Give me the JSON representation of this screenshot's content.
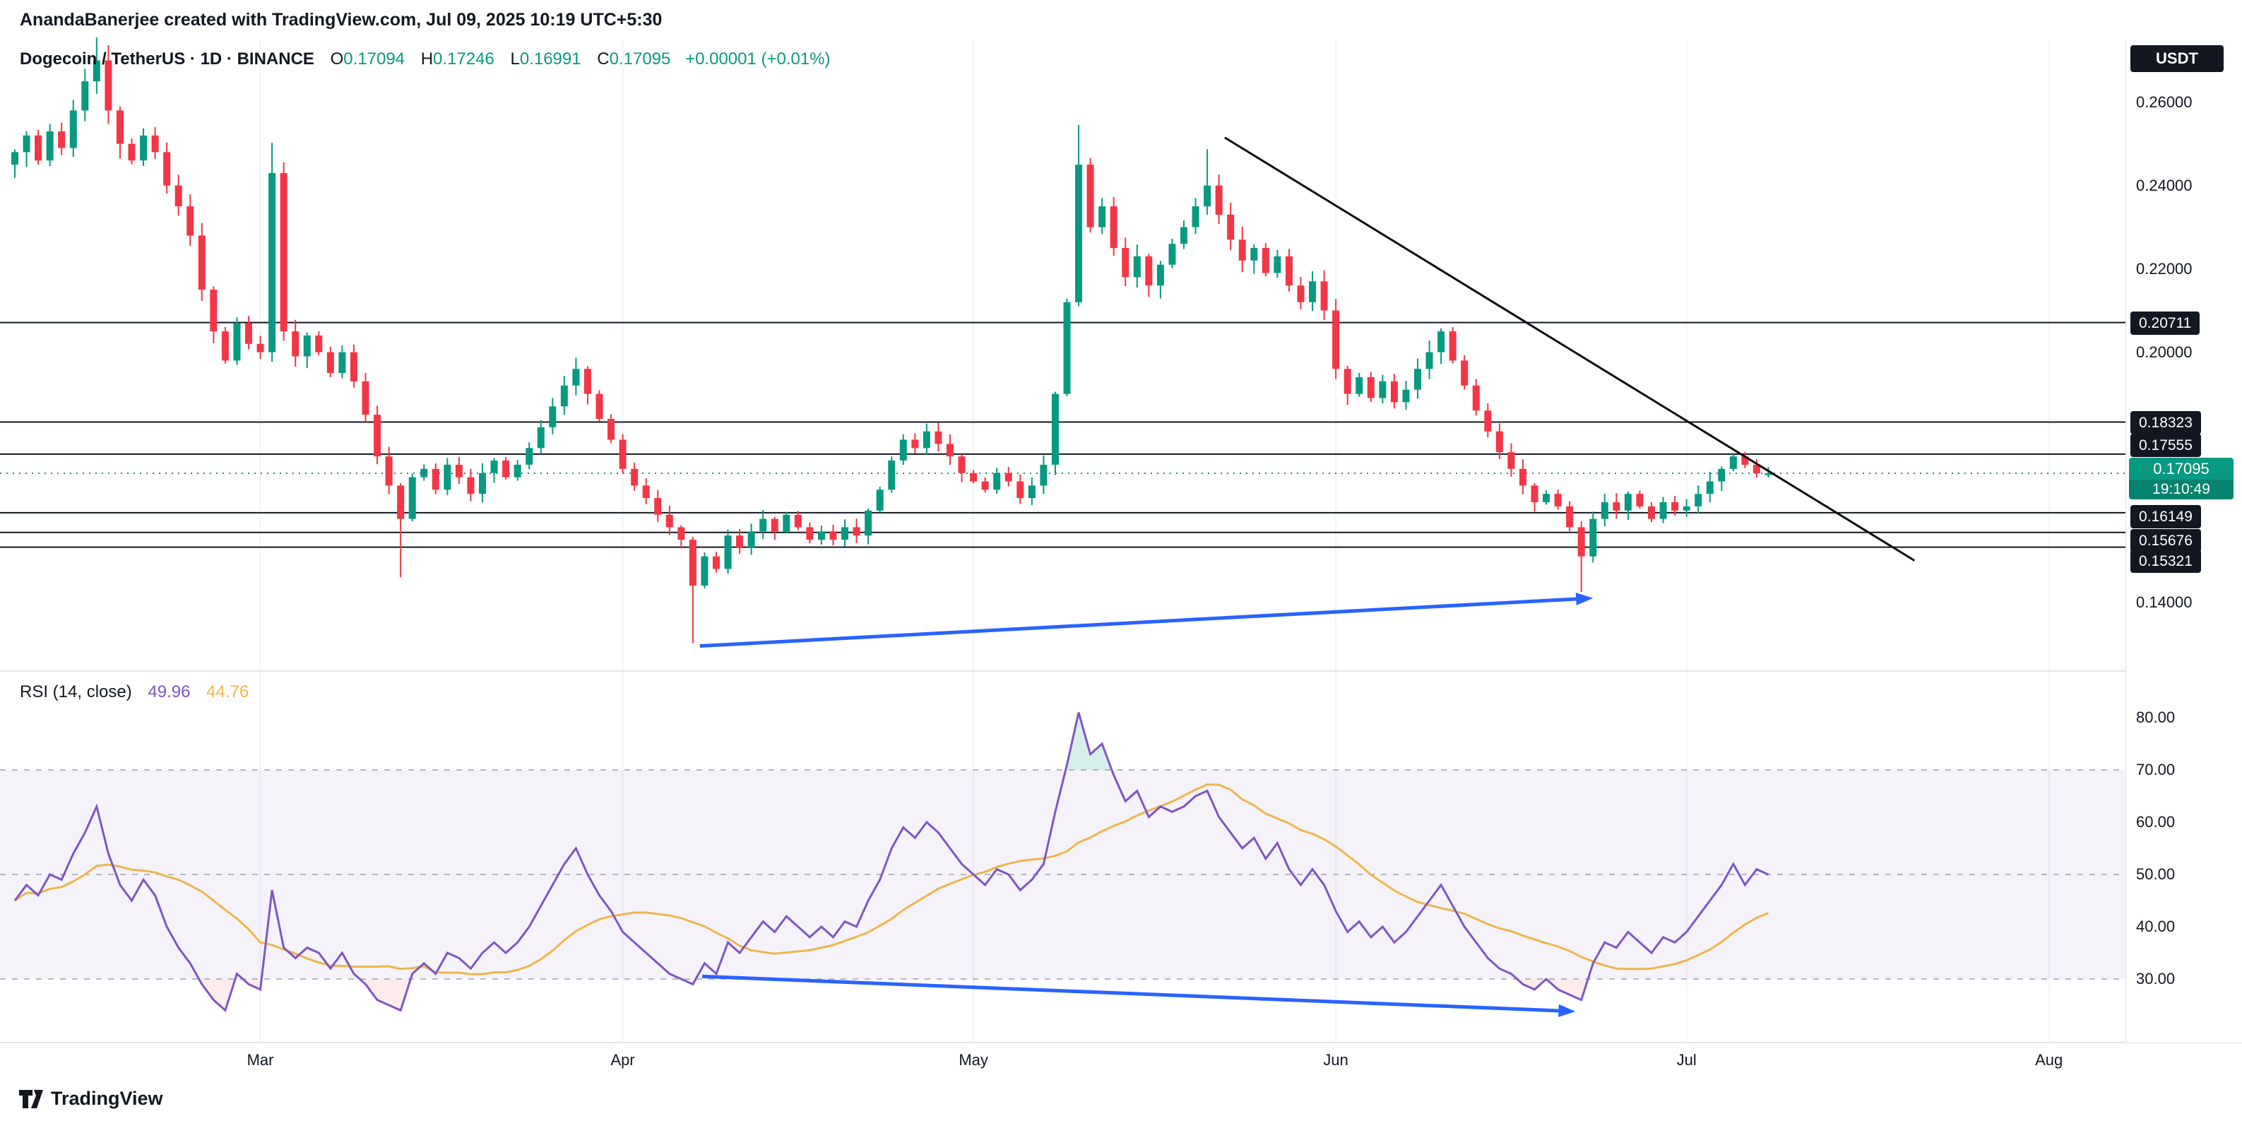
{
  "header": {
    "attribution": "AnandaBanerjee created with TradingView.com, Jul 09, 2025 10:19 UTC+5:30"
  },
  "legend": {
    "title": "Dogecoin / TetherUS · 1D · BINANCE",
    "open_label": "O",
    "open_value": "0.17094",
    "high_label": "H",
    "high_value": "0.17246",
    "low_label": "L",
    "low_value": "0.16991",
    "close_label": "C",
    "close_value": "0.17095",
    "change": "+0.00001 (+0.01%)"
  },
  "rsi_legend": {
    "label": "RSI (14, close)",
    "value": "49.96",
    "ma_value": "44.76"
  },
  "price_axis": {
    "currency": "USDT",
    "plain": [
      {
        "p": 0.26,
        "t": "0.26000"
      },
      {
        "p": 0.24,
        "t": "0.24000"
      },
      {
        "p": 0.22,
        "t": "0.22000"
      },
      {
        "p": 0.2,
        "t": "0.20000"
      },
      {
        "p": 0.14,
        "t": "0.14000"
      }
    ],
    "badges": [
      {
        "p": 0.20711,
        "t": "0.20711"
      },
      {
        "p": 0.18323,
        "t": "0.18323"
      },
      {
        "p": 0.17555,
        "t": "0.17555"
      },
      {
        "p": 0.16149,
        "t": "0.16149"
      },
      {
        "p": 0.15676,
        "t": "0.15676"
      },
      {
        "p": 0.15321,
        "t": "0.15321"
      }
    ],
    "current": {
      "p": 0.17095,
      "t": "0.17095",
      "countdown": "19:10:49"
    }
  },
  "rsi_axis": [
    {
      "v": 80,
      "t": "80.00"
    },
    {
      "v": 70,
      "t": "70.00"
    },
    {
      "v": 60,
      "t": "60.00"
    },
    {
      "v": 50,
      "t": "50.00"
    },
    {
      "v": 40,
      "t": "40.00"
    },
    {
      "v": 30,
      "t": "30.00"
    }
  ],
  "time_axis": {
    "ticks": [
      {
        "label": "Mar",
        "index": 21
      },
      {
        "label": "Apr",
        "index": 52
      },
      {
        "label": "May",
        "index": 82
      },
      {
        "label": "Jun",
        "index": 113
      },
      {
        "label": "Jul",
        "index": 143
      },
      {
        "label": "Aug",
        "index": 174
      }
    ]
  },
  "footer": {
    "brand": "TradingView"
  },
  "colors": {
    "up": "#089981",
    "down": "#F23645",
    "blue": "#2962FF",
    "rsi": "#7E57C2",
    "rsi_ma": "#EFB54B",
    "band_fill": "rgba(126,87,194,0.08)",
    "band_line": "rgba(127,127,143,0.55)",
    "level": "#131722",
    "grid": "#F0F3FA",
    "sep": "#E0E3EB",
    "trend": "#0C0C0C",
    "ob_fill": "rgba(8,153,129,0.16)",
    "os_fill": "rgba(242,54,69,0.10)"
  },
  "chart_data": {
    "type": "candlestick",
    "title": "Dogecoin / TetherUS, 1D, BINANCE, with RSI(14) subpanel",
    "x_unit": "day",
    "months_visible": [
      "Mar",
      "Apr",
      "May",
      "Jun",
      "Jul",
      "Aug"
    ],
    "price_range_visible": [
      0.123,
      0.275
    ],
    "rsi_range_visible": [
      18,
      88
    ],
    "current_price": 0.17095,
    "first_open": 0.245,
    "closes": [
      0.248,
      0.252,
      0.246,
      0.253,
      0.249,
      0.258,
      0.265,
      0.27,
      0.258,
      0.25,
      0.246,
      0.252,
      0.248,
      0.24,
      0.235,
      0.228,
      0.215,
      0.205,
      0.198,
      0.207,
      0.202,
      0.2,
      0.243,
      0.205,
      0.199,
      0.204,
      0.2,
      0.195,
      0.2,
      0.193,
      0.185,
      0.175,
      0.168,
      0.16,
      0.17,
      0.172,
      0.167,
      0.173,
      0.17,
      0.166,
      0.171,
      0.174,
      0.17,
      0.173,
      0.177,
      0.182,
      0.187,
      0.192,
      0.196,
      0.19,
      0.184,
      0.179,
      0.172,
      0.168,
      0.165,
      0.161,
      0.158,
      0.155,
      0.144,
      0.151,
      0.148,
      0.156,
      0.153,
      0.157,
      0.16,
      0.157,
      0.161,
      0.158,
      0.155,
      0.157,
      0.155,
      0.158,
      0.156,
      0.162,
      0.167,
      0.174,
      0.179,
      0.177,
      0.181,
      0.178,
      0.175,
      0.171,
      0.169,
      0.167,
      0.171,
      0.169,
      0.165,
      0.168,
      0.173,
      0.19,
      0.212,
      0.245,
      0.23,
      0.235,
      0.225,
      0.218,
      0.223,
      0.216,
      0.221,
      0.226,
      0.23,
      0.235,
      0.24,
      0.233,
      0.227,
      0.222,
      0.225,
      0.219,
      0.223,
      0.216,
      0.212,
      0.217,
      0.21,
      0.196,
      0.19,
      0.194,
      0.189,
      0.193,
      0.188,
      0.191,
      0.196,
      0.2,
      0.205,
      0.198,
      0.192,
      0.186,
      0.181,
      0.176,
      0.172,
      0.168,
      0.164,
      0.166,
      0.163,
      0.158,
      0.151,
      0.16,
      0.164,
      0.162,
      0.166,
      0.163,
      0.16,
      0.164,
      0.162,
      0.163,
      0.166,
      0.169,
      0.172,
      0.175,
      0.173,
      0.17094,
      0.17095
    ],
    "ohlc_overrides": {
      "7": {
        "h": 0.2755
      },
      "22": {
        "h": 0.2502
      },
      "33": {
        "l": 0.146
      },
      "58": {
        "l": 0.1302
      },
      "91": {
        "h": 0.2545
      },
      "102": {
        "h": 0.2487
      },
      "134": {
        "l": 0.1425
      },
      "150": {
        "o": 0.17094,
        "h": 0.17246,
        "l": 0.16991,
        "c": 0.17095
      }
    },
    "horizontal_levels": [
      0.20711,
      0.18323,
      0.17555,
      0.16149,
      0.15676,
      0.15321
    ],
    "rsi_settings": {
      "length": 14,
      "source": "close",
      "overbought": 70,
      "middle": 50,
      "oversold": 30,
      "ma_period": 14
    },
    "rsi_values": [
      45,
      48,
      46,
      50,
      49,
      54,
      58,
      63,
      54,
      48,
      45,
      49,
      46,
      40,
      36,
      33,
      29,
      26,
      24,
      31,
      29,
      28,
      47,
      36,
      34,
      36,
      35,
      32,
      35,
      31,
      29,
      26,
      25,
      24,
      31,
      33,
      31,
      35,
      34,
      32,
      35,
      37,
      35,
      37,
      40,
      44,
      48,
      52,
      55,
      50,
      46,
      43,
      39,
      37,
      35,
      33,
      31,
      30,
      29,
      33,
      31,
      37,
      35,
      38,
      41,
      39,
      42,
      40,
      38,
      40,
      38,
      41,
      40,
      45,
      49,
      55,
      59,
      57,
      60,
      58,
      55,
      52,
      50,
      48,
      51,
      50,
      47,
      49,
      52,
      62,
      71,
      81,
      73,
      75,
      69,
      64,
      66,
      61,
      63,
      62,
      63,
      65,
      66,
      61,
      58,
      55,
      57,
      53,
      56,
      51,
      48,
      51,
      48,
      43,
      39,
      41,
      38,
      40,
      37,
      39,
      42,
      45,
      48,
      44,
      40,
      37,
      34,
      32,
      31,
      29,
      28,
      30,
      28,
      27,
      26,
      33,
      37,
      36,
      39,
      37,
      35,
      38,
      37,
      39,
      42,
      45,
      48,
      52,
      48,
      51,
      49.96
    ],
    "drawings": {
      "trendline": {
        "from_index": 103.5,
        "from_price": 0.2515,
        "to_index": 162.5,
        "to_price": 0.15
      },
      "price_arrow": {
        "from_index": 58.6,
        "from_price": 0.1295,
        "to_index": 135,
        "to_price": 0.141
      },
      "rsi_arrow": {
        "from_index": 58.8,
        "from_value": 30.5,
        "to_index": 133.5,
        "to_value": 23.8
      }
    }
  }
}
